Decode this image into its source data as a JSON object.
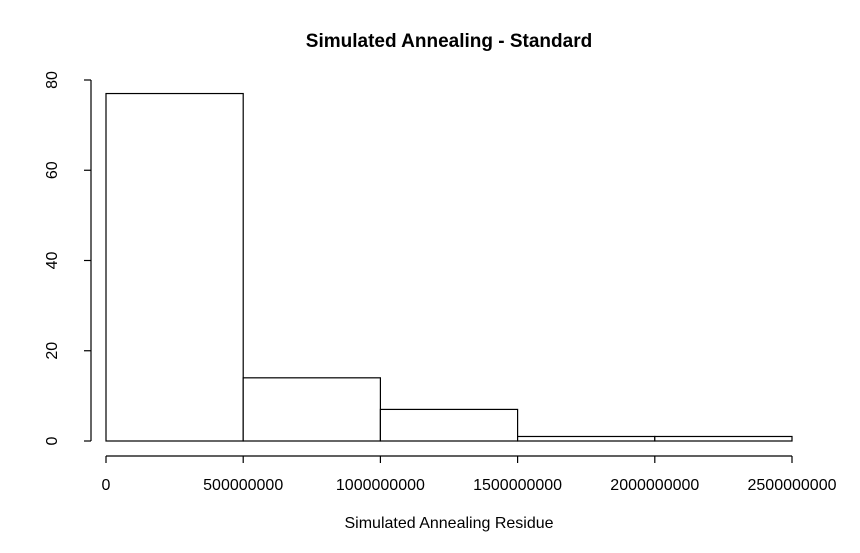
{
  "chart_data": {
    "type": "histogram",
    "title": "Simulated Annealing - Standard",
    "xlabel": "Simulated Annealing Residue",
    "ylabel": "",
    "bins": [
      {
        "start": 0,
        "end": 500000000,
        "count": 77
      },
      {
        "start": 500000000,
        "end": 1000000000,
        "count": 14
      },
      {
        "start": 1000000000,
        "end": 1500000000,
        "count": 7
      },
      {
        "start": 1500000000,
        "end": 2000000000,
        "count": 1
      },
      {
        "start": 2000000000,
        "end": 2500000000,
        "count": 1
      }
    ],
    "xlim": [
      0,
      2500000000
    ],
    "ylim": [
      0,
      80
    ],
    "x_ticks": [
      0,
      500000000,
      1000000000,
      1500000000,
      2000000000,
      2500000000
    ],
    "x_tick_labels": [
      "0",
      "500000000",
      "1000000000",
      "1500000000",
      "2000000000",
      "2500000000"
    ],
    "y_ticks": [
      0,
      20,
      40,
      60,
      80
    ],
    "y_tick_labels": [
      "0",
      "20",
      "40",
      "60",
      "80"
    ],
    "grid": false,
    "bar_fill": "#ffffff",
    "bar_stroke": "#000000"
  }
}
